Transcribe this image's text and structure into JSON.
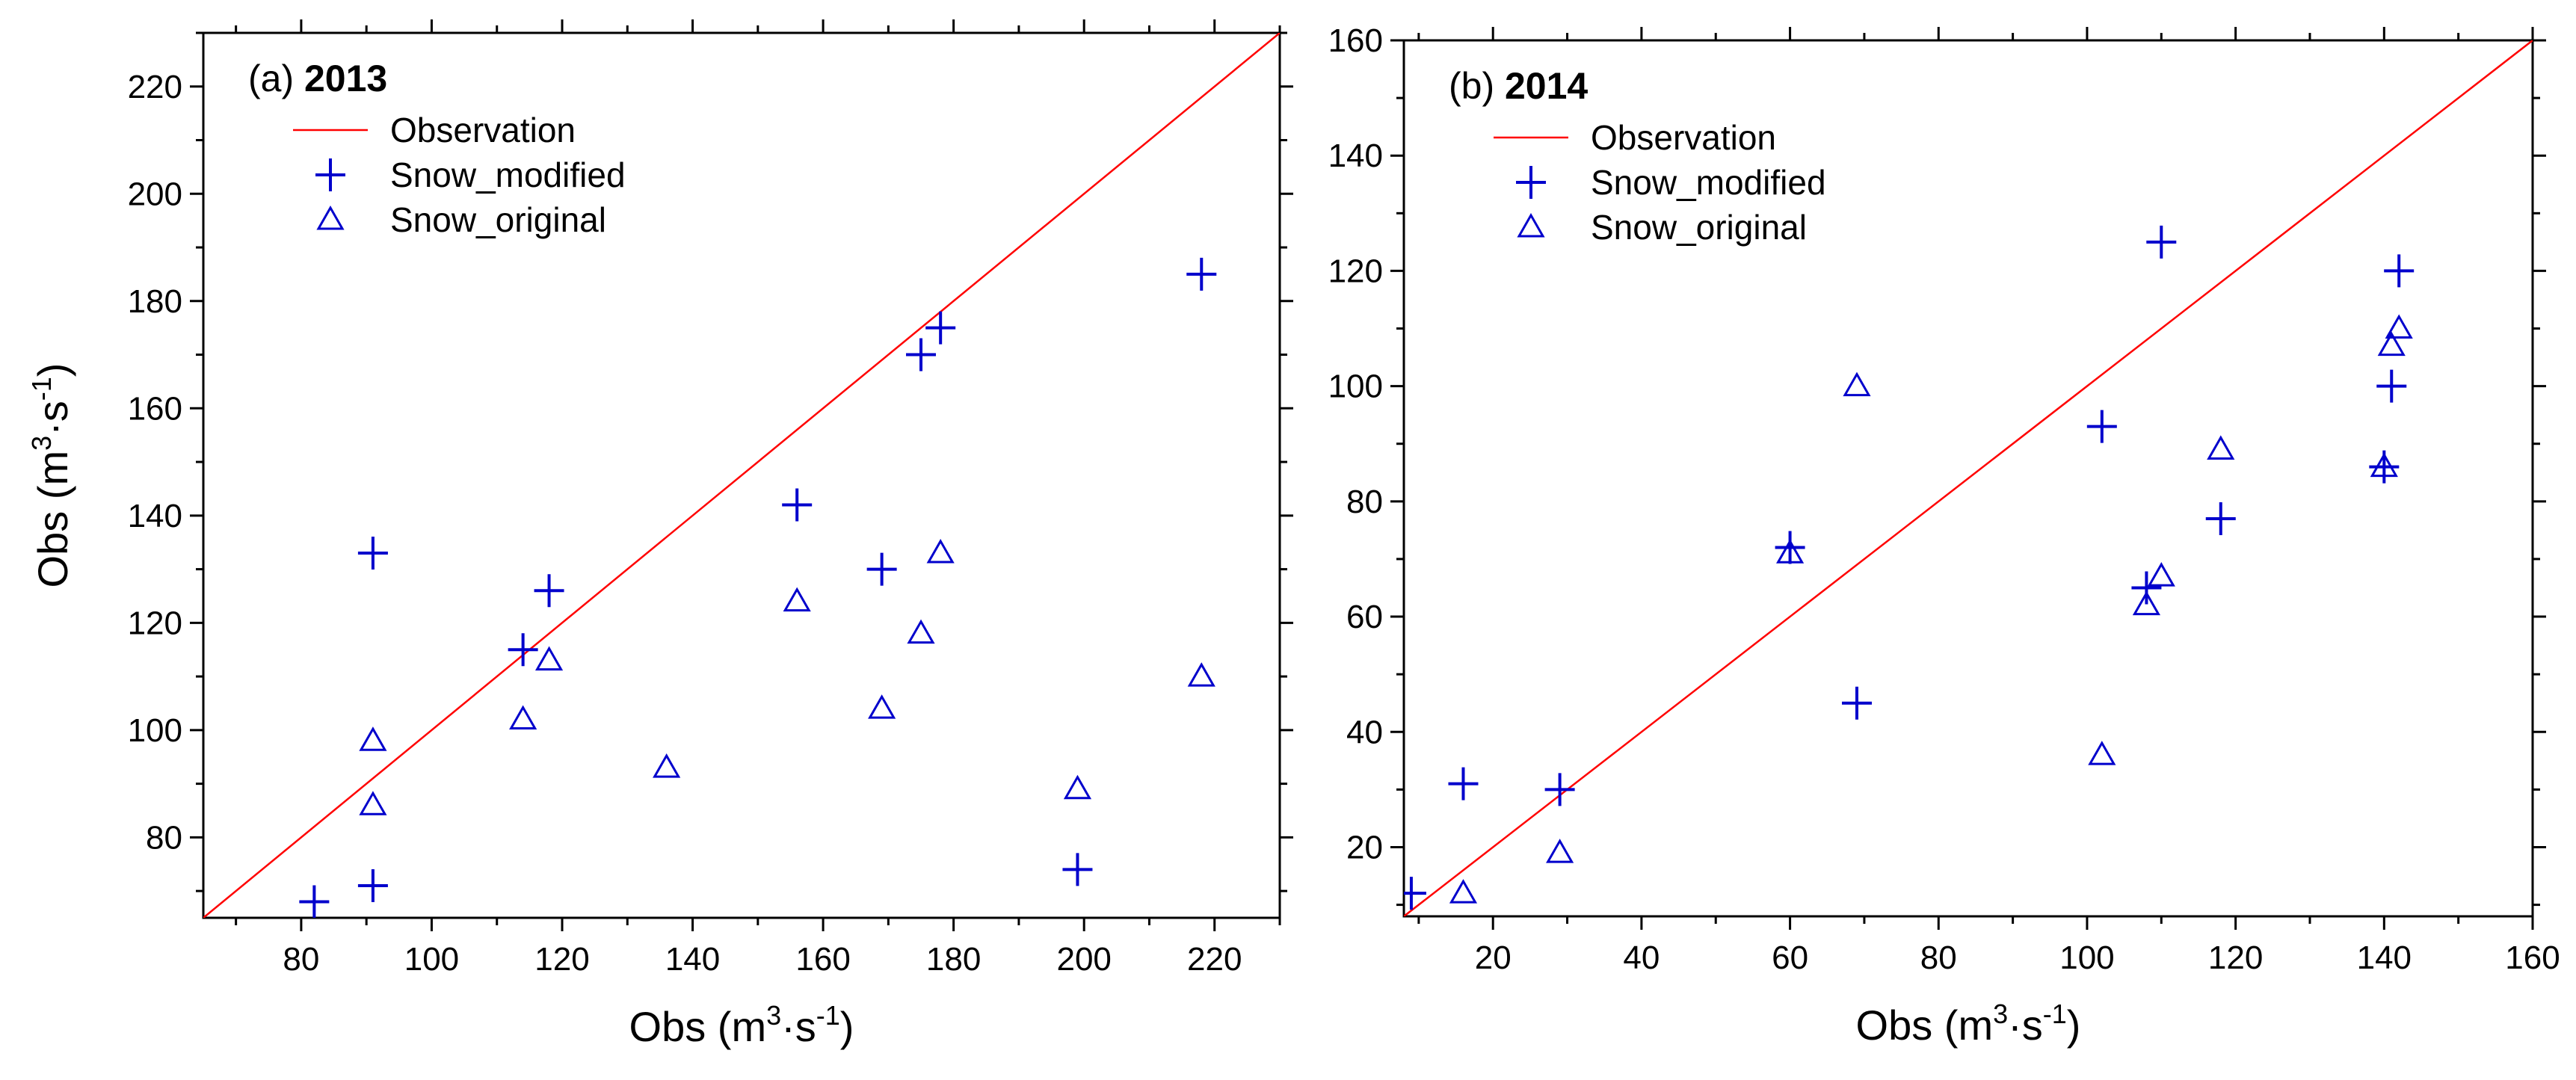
{
  "colors": {
    "accent": "#0000cc",
    "line": "#ff0000",
    "axis": "#000000"
  },
  "chart_data": [
    {
      "type": "scatter",
      "panel": "(a)",
      "year": "2013",
      "xlabel": "Obs (m³·s⁻¹)",
      "ylabel": "Obs (m³·s⁻¹)",
      "xlim": [
        65,
        230
      ],
      "ylim": [
        65,
        230
      ],
      "xticks": [
        80,
        100,
        120,
        140,
        160,
        180,
        200,
        220
      ],
      "yticks": [
        80,
        100,
        120,
        140,
        160,
        180,
        200,
        220
      ],
      "line": {
        "name": "Observation",
        "from": [
          65,
          65
        ],
        "to": [
          230,
          230
        ]
      },
      "series": [
        {
          "name": "Snow_modified",
          "marker": "plus",
          "points": [
            [
              82,
              68
            ],
            [
              91,
              71
            ],
            [
              91,
              133
            ],
            [
              114,
              115
            ],
            [
              118,
              126
            ],
            [
              156,
              142
            ],
            [
              169,
              130
            ],
            [
              175,
              170
            ],
            [
              178,
              175
            ],
            [
              199,
              74
            ],
            [
              218,
              185
            ]
          ]
        },
        {
          "name": "Snow_original",
          "marker": "triangle",
          "points": [
            [
              91,
              86
            ],
            [
              91,
              98
            ],
            [
              114,
              102
            ],
            [
              118,
              113
            ],
            [
              136,
              93
            ],
            [
              156,
              124
            ],
            [
              169,
              104
            ],
            [
              175,
              118
            ],
            [
              178,
              133
            ],
            [
              199,
              89
            ],
            [
              218,
              110
            ]
          ]
        }
      ]
    },
    {
      "type": "scatter",
      "panel": "(b)",
      "year": "2014",
      "xlabel": "Obs (m³·s⁻¹)",
      "ylabel": "",
      "xlim": [
        8,
        160
      ],
      "ylim": [
        8,
        160
      ],
      "xticks": [
        20,
        40,
        60,
        80,
        100,
        120,
        140,
        160
      ],
      "yticks": [
        20,
        40,
        60,
        80,
        100,
        120,
        140,
        160
      ],
      "line": {
        "name": "Observation",
        "from": [
          8,
          8
        ],
        "to": [
          160,
          160
        ]
      },
      "series": [
        {
          "name": "Snow_modified",
          "marker": "plus",
          "points": [
            [
              9,
              12
            ],
            [
              16,
              31
            ],
            [
              29,
              30
            ],
            [
              60,
              72
            ],
            [
              69,
              45
            ],
            [
              102,
              93
            ],
            [
              108,
              65
            ],
            [
              110,
              125
            ],
            [
              118,
              77
            ],
            [
              140,
              86
            ],
            [
              141,
              100
            ],
            [
              142,
              120
            ]
          ]
        },
        {
          "name": "Snow_original",
          "marker": "triangle",
          "points": [
            [
              16,
              12
            ],
            [
              29,
              19
            ],
            [
              60,
              71
            ],
            [
              69,
              100
            ],
            [
              102,
              36
            ],
            [
              108,
              62
            ],
            [
              110,
              67
            ],
            [
              118,
              89
            ],
            [
              140,
              86
            ],
            [
              141,
              107
            ],
            [
              142,
              110
            ]
          ]
        }
      ]
    }
  ]
}
